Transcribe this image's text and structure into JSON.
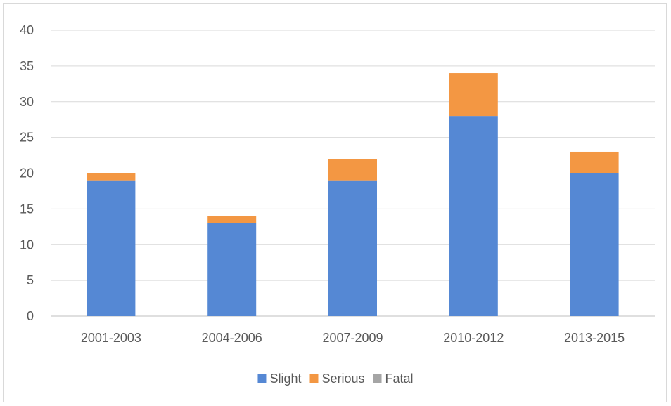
{
  "chart_data": {
    "type": "bar",
    "stacked": true,
    "categories": [
      "2001-2003",
      "2004-2006",
      "2007-2009",
      "2010-2012",
      "2013-2015"
    ],
    "series": [
      {
        "name": "Slight",
        "values": [
          19,
          13,
          19,
          28,
          20
        ],
        "color": "#5588d4"
      },
      {
        "name": "Serious",
        "values": [
          1,
          1,
          3,
          6,
          3
        ],
        "color": "#f39743"
      },
      {
        "name": "Fatal",
        "values": [
          0,
          0,
          0,
          0,
          0
        ],
        "color": "#a5a5a5"
      }
    ],
    "yticks": [
      "0",
      "5",
      "10",
      "15",
      "20",
      "25",
      "30",
      "35",
      "40"
    ],
    "ylim": [
      0,
      40
    ],
    "grid": true,
    "legend_position": "bottom"
  }
}
